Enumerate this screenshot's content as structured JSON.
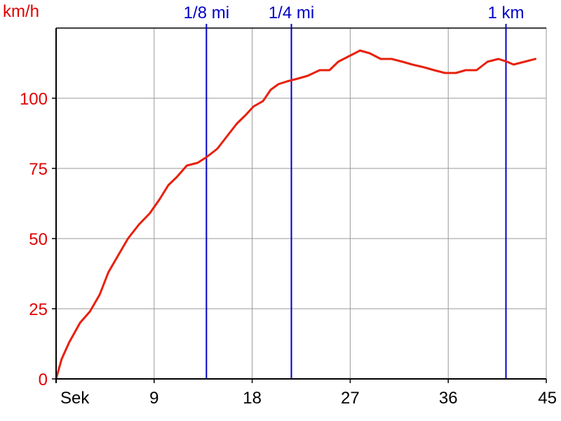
{
  "chart_data": {
    "type": "line",
    "ylabel": "km/h",
    "xlabel": "Sek",
    "xlim": [
      0,
      45
    ],
    "ylim": [
      0,
      125
    ],
    "x_ticks": [
      9,
      18,
      27,
      36,
      45
    ],
    "y_ticks": [
      0,
      25,
      50,
      75,
      100
    ],
    "grid": true,
    "colors": {
      "series": "#e8200c",
      "markers": "#0000c8",
      "y_ticks": "#e00000",
      "x_ticks": "#000000",
      "grid": "#999999",
      "axis": "#000000"
    },
    "markers": [
      {
        "label": "1/8 mi",
        "x": 13.8
      },
      {
        "label": "1/4 mi",
        "x": 21.6
      },
      {
        "label": "1 km",
        "x": 41.3
      }
    ],
    "series": [
      {
        "x": [
          0,
          0.5,
          1.2,
          2.2,
          3.1,
          4.0,
          4.8,
          5.7,
          6.6,
          7.6,
          8.6,
          9.5,
          10.3,
          11.1,
          12.0,
          13.0,
          13.8,
          14.8,
          15.8,
          16.6,
          17.4,
          18.1,
          19.0,
          19.7,
          20.4,
          21.2,
          22.2,
          23.1,
          24.2,
          25.1,
          25.9,
          26.9,
          27.9,
          28.8,
          29.8,
          30.8,
          31.8,
          32.7,
          33.8,
          34.7,
          35.7,
          36.7,
          37.6,
          38.6,
          39.6,
          40.6,
          41.4,
          42.0,
          43.0,
          44.0
        ],
        "y": [
          0,
          7,
          13,
          20,
          24,
          30,
          38,
          44,
          50,
          55,
          59,
          64,
          69,
          72,
          76,
          77,
          79,
          82,
          87,
          91,
          94,
          97,
          99,
          103,
          105,
          106,
          107,
          108,
          110,
          110,
          113,
          115,
          117,
          116,
          114,
          114,
          113,
          112,
          111,
          110,
          109,
          109,
          110,
          110,
          113,
          114,
          113,
          112,
          113,
          114
        ]
      }
    ]
  }
}
